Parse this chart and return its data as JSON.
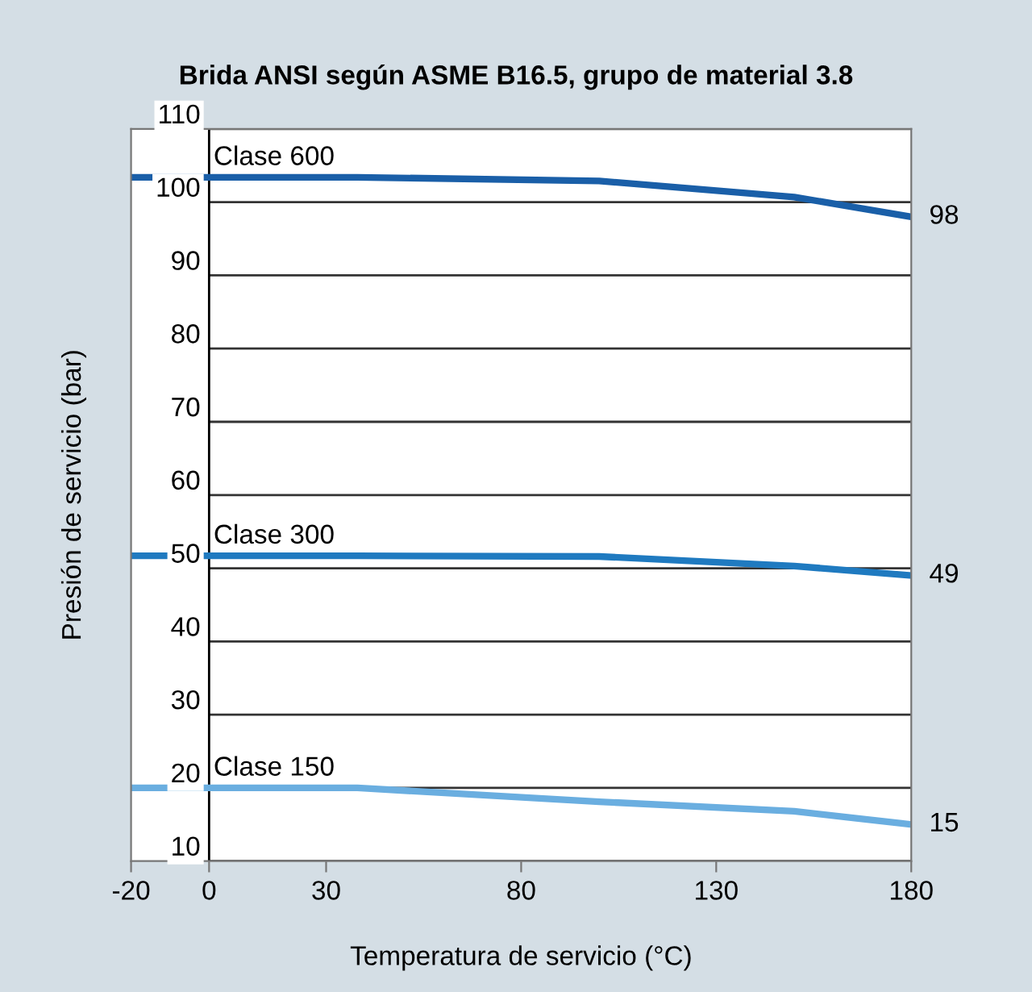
{
  "chart_data": {
    "type": "line",
    "title": "Brida ANSI según ASME B16.5, grupo de material 3.8",
    "xlabel": "Temperatura de servicio (°C)",
    "ylabel": "Presión de servicio (bar)",
    "xlim": [
      -20,
      180
    ],
    "xticks": [
      -20,
      0,
      30,
      80,
      130,
      180
    ],
    "ylim": [
      10,
      110
    ],
    "yticks": [
      10,
      20,
      30,
      40,
      50,
      60,
      70,
      80,
      90,
      100,
      110
    ],
    "grid": "y",
    "legend": false,
    "marker": "none",
    "line_style": "solid",
    "x": [
      -20,
      38,
      100,
      150,
      180
    ],
    "series": [
      {
        "name": "Clase 600",
        "color": "#1a5fa8",
        "values": [
          103.4,
          103.4,
          102.9,
          100.7,
          98
        ],
        "value_labels": [
          null,
          null,
          null,
          null,
          "98"
        ]
      },
      {
        "name": "Clase 300",
        "color": "#1f7ac0",
        "values": [
          51.7,
          51.7,
          51.6,
          50.3,
          49
        ],
        "value_labels": [
          null,
          null,
          null,
          null,
          "49"
        ]
      },
      {
        "name": "Clase 150",
        "color": "#6aaee0",
        "values": [
          20,
          20,
          18.1,
          16.8,
          15
        ],
        "value_labels": [
          null,
          null,
          null,
          null,
          "15"
        ]
      }
    ]
  }
}
